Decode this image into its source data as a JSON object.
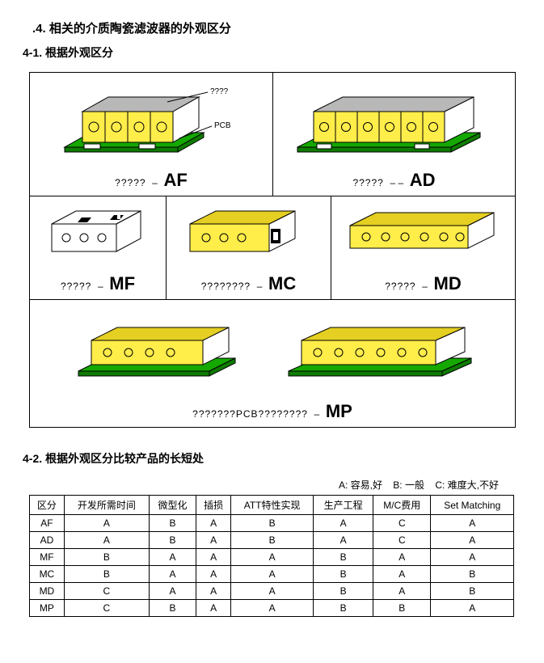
{
  "headings": {
    "title": ".4. 相关的介质陶瓷滤波器的外观区分",
    "s1": "4-1. 根据外观区分",
    "s2": "4-2. 根据外观区分比较产品的长短处"
  },
  "legend": {
    "a": "A: 容易,好",
    "b": "B: 一般",
    "c": "C: 难度大,不好"
  },
  "cards": {
    "AF": {
      "placeholder": "?????",
      "sep": "–",
      "code": "AF",
      "callout_top": "????",
      "callout_bottom": "PCB"
    },
    "AD": {
      "placeholder": "?????",
      "sep": "– –",
      "code": "AD"
    },
    "MF": {
      "placeholder": "?????",
      "sep": "–",
      "code": "MF"
    },
    "MC": {
      "placeholder": "????????",
      "sep": "–",
      "code": "MC"
    },
    "MD": {
      "placeholder": "?????",
      "sep": "–",
      "code": "MD"
    },
    "MP": {
      "placeholder": "???????PCB????????",
      "sep": "–",
      "code": "MP"
    }
  },
  "colors": {
    "yellow": "#FFED4A",
    "yellow_shade": "#E4CF22",
    "gray": "#B8B8B8",
    "green": "#14A800",
    "green_dark": "#0E7B00",
    "black": "#000000",
    "white": "#FFFFFF"
  },
  "table": {
    "columns": [
      "区分",
      "开发所需时间",
      "微型化",
      "插损",
      "ATT特性实现",
      "生产工程",
      "M/C费用",
      "Set Matching"
    ],
    "rows": [
      [
        "AF",
        "A",
        "B",
        "A",
        "B",
        "A",
        "C",
        "A"
      ],
      [
        "AD",
        "A",
        "B",
        "A",
        "B",
        "A",
        "C",
        "A"
      ],
      [
        "MF",
        "B",
        "A",
        "A",
        "A",
        "B",
        "A",
        "A"
      ],
      [
        "MC",
        "B",
        "A",
        "A",
        "A",
        "B",
        "A",
        "B"
      ],
      [
        "MD",
        "C",
        "A",
        "A",
        "A",
        "B",
        "A",
        "B"
      ],
      [
        "MP",
        "C",
        "B",
        "A",
        "A",
        "B",
        "B",
        "A"
      ]
    ]
  }
}
